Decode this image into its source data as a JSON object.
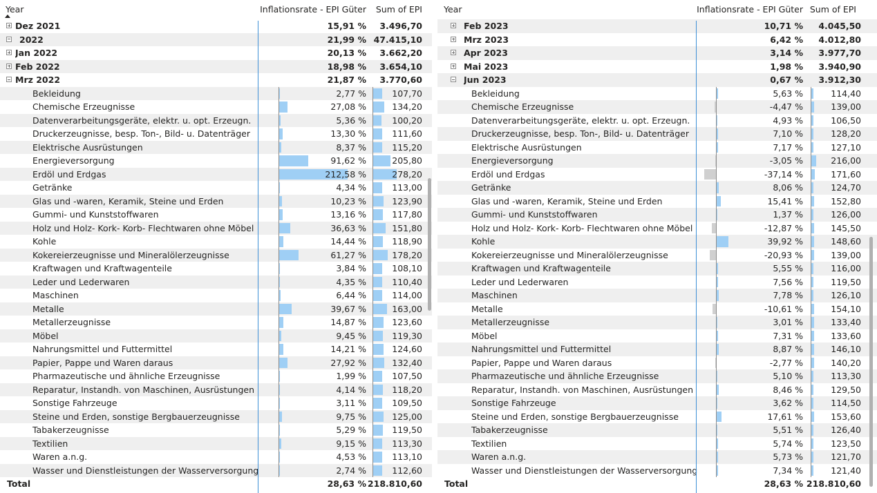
{
  "left": {
    "headers": {
      "year": "Year",
      "rate": "Inflationsrate - EPI Güter",
      "sum": "Sum of EPI"
    },
    "rows": [
      {
        "label": "Dez 2021",
        "rate": "15,91 %",
        "sum": "3.496,70",
        "level": 1,
        "icon": "plus",
        "bold": true
      },
      {
        "label": "2022",
        "rate": "21,99 %",
        "sum": "47.415,10",
        "level": 0,
        "icon": "minus",
        "bold": true
      },
      {
        "label": "Jan 2022",
        "rate": "20,13 %",
        "sum": "3.662,20",
        "level": 1,
        "icon": "plus",
        "bold": true
      },
      {
        "label": "Feb 2022",
        "rate": "18,98 %",
        "sum": "3.654,10",
        "level": 1,
        "icon": "plus",
        "bold": true
      },
      {
        "label": "Mrz 2022",
        "rate": "21,87 %",
        "sum": "3.770,60",
        "level": 1,
        "icon": "minus",
        "bold": true
      },
      {
        "label": "Bekleidung",
        "rate": "2,77 %",
        "sum": "107,70",
        "level": 2,
        "r": 2.77,
        "s": 107.7
      },
      {
        "label": "Chemische Erzeugnisse",
        "rate": "27,08 %",
        "sum": "134,20",
        "level": 2,
        "r": 27.08,
        "s": 134.2
      },
      {
        "label": "Datenverarbeitungsgeräte, elektr. u. opt. Erzeugn.",
        "rate": "5,36 %",
        "sum": "100,20",
        "level": 2,
        "r": 5.36,
        "s": 100.2
      },
      {
        "label": "Druckerzeugnisse, besp. Ton-, Bild- u. Datenträger",
        "rate": "13,30 %",
        "sum": "111,60",
        "level": 2,
        "r": 13.3,
        "s": 111.6
      },
      {
        "label": "Elektrische Ausrüstungen",
        "rate": "8,37 %",
        "sum": "115,20",
        "level": 2,
        "r": 8.37,
        "s": 115.2
      },
      {
        "label": "Energieversorgung",
        "rate": "91,62 %",
        "sum": "205,80",
        "level": 2,
        "r": 91.62,
        "s": 205.8
      },
      {
        "label": "Erdöl und Erdgas",
        "rate": "212,58 %",
        "sum": "278,20",
        "level": 2,
        "r": 212.58,
        "s": 278.2
      },
      {
        "label": "Getränke",
        "rate": "4,34 %",
        "sum": "113,00",
        "level": 2,
        "r": 4.34,
        "s": 113.0
      },
      {
        "label": "Glas und -waren, Keramik, Steine und Erden",
        "rate": "10,23 %",
        "sum": "123,90",
        "level": 2,
        "r": 10.23,
        "s": 123.9
      },
      {
        "label": "Gummi- und Kunststoffwaren",
        "rate": "13,16 %",
        "sum": "117,80",
        "level": 2,
        "r": 13.16,
        "s": 117.8
      },
      {
        "label": "Holz und Holz- Kork- Korb- Flechtwaren ohne Möbel",
        "rate": "36,63 %",
        "sum": "151,80",
        "level": 2,
        "r": 36.63,
        "s": 151.8
      },
      {
        "label": "Kohle",
        "rate": "14,44 %",
        "sum": "118,90",
        "level": 2,
        "r": 14.44,
        "s": 118.9
      },
      {
        "label": "Kokereierzeugnisse und Mineralölerzeugnisse",
        "rate": "61,27 %",
        "sum": "178,20",
        "level": 2,
        "r": 61.27,
        "s": 178.2
      },
      {
        "label": "Kraftwagen und Kraftwagenteile",
        "rate": "3,84 %",
        "sum": "108,10",
        "level": 2,
        "r": 3.84,
        "s": 108.1
      },
      {
        "label": "Leder und Lederwaren",
        "rate": "4,35 %",
        "sum": "110,40",
        "level": 2,
        "r": 4.35,
        "s": 110.4
      },
      {
        "label": "Maschinen",
        "rate": "6,44 %",
        "sum": "114,00",
        "level": 2,
        "r": 6.44,
        "s": 114.0
      },
      {
        "label": "Metalle",
        "rate": "39,67 %",
        "sum": "163,00",
        "level": 2,
        "r": 39.67,
        "s": 163.0
      },
      {
        "label": "Metallerzeugnisse",
        "rate": "14,87 %",
        "sum": "123,60",
        "level": 2,
        "r": 14.87,
        "s": 123.6
      },
      {
        "label": "Möbel",
        "rate": "9,45 %",
        "sum": "119,30",
        "level": 2,
        "r": 9.45,
        "s": 119.3
      },
      {
        "label": "Nahrungsmittel und Futtermittel",
        "rate": "14,21 %",
        "sum": "124,60",
        "level": 2,
        "r": 14.21,
        "s": 124.6
      },
      {
        "label": "Papier, Pappe und Waren daraus",
        "rate": "27,92 %",
        "sum": "132,40",
        "level": 2,
        "r": 27.92,
        "s": 132.4
      },
      {
        "label": "Pharmazeutische und ähnliche Erzeugnisse",
        "rate": "1,99 %",
        "sum": "107,50",
        "level": 2,
        "r": 1.99,
        "s": 107.5
      },
      {
        "label": "Reparatur, Instandh. von Maschinen, Ausrüstungen",
        "rate": "4,14 %",
        "sum": "118,20",
        "level": 2,
        "r": 4.14,
        "s": 118.2
      },
      {
        "label": "Sonstige Fahrzeuge",
        "rate": "3,11 %",
        "sum": "109,50",
        "level": 2,
        "r": 3.11,
        "s": 109.5
      },
      {
        "label": "Steine und Erden, sonstige Bergbauerzeugnisse",
        "rate": "9,75 %",
        "sum": "125,00",
        "level": 2,
        "r": 9.75,
        "s": 125.0
      },
      {
        "label": "Tabakerzeugnisse",
        "rate": "5,29 %",
        "sum": "119,50",
        "level": 2,
        "r": 5.29,
        "s": 119.5
      },
      {
        "label": "Textilien",
        "rate": "9,15 %",
        "sum": "113,30",
        "level": 2,
        "r": 9.15,
        "s": 113.3
      },
      {
        "label": "Waren a.n.g.",
        "rate": "4,53 %",
        "sum": "113,10",
        "level": 2,
        "r": 4.53,
        "s": 113.1
      },
      {
        "label": "Wasser und Dienstleistungen der Wasserversorgung",
        "rate": "2,74 %",
        "sum": "112,60",
        "level": 2,
        "r": 2.74,
        "s": 112.6
      }
    ],
    "total": {
      "label": "Total",
      "rate": "28,63 %",
      "sum": "218.810,60"
    }
  },
  "right": {
    "headers": {
      "year": "Year",
      "rate": "Inflationsrate - EPI Güter",
      "sum": "Sum of EPI"
    },
    "rows": [
      {
        "label": "Feb 2023",
        "rate": "10,71 %",
        "sum": "4.045,50",
        "level": 1,
        "icon": "plus",
        "bold": true
      },
      {
        "label": "Mrz 2023",
        "rate": "6,42 %",
        "sum": "4.012,80",
        "level": 1,
        "icon": "plus",
        "bold": true
      },
      {
        "label": "Apr 2023",
        "rate": "3,14 %",
        "sum": "3.977,70",
        "level": 1,
        "icon": "plus",
        "bold": true
      },
      {
        "label": "Mai 2023",
        "rate": "1,98 %",
        "sum": "3.940,90",
        "level": 1,
        "icon": "plus",
        "bold": true
      },
      {
        "label": "Jun 2023",
        "rate": "0,67 %",
        "sum": "3.912,30",
        "level": 1,
        "icon": "minus",
        "bold": true
      },
      {
        "label": "Bekleidung",
        "rate": "5,63 %",
        "sum": "114,40",
        "level": 2,
        "r": 5.63,
        "s": 114.4
      },
      {
        "label": "Chemische Erzeugnisse",
        "rate": "-4,47 %",
        "sum": "139,00",
        "level": 2,
        "r": -4.47,
        "s": 139.0
      },
      {
        "label": "Datenverarbeitungsgeräte, elektr. u. opt. Erzeugn.",
        "rate": "4,93 %",
        "sum": "106,50",
        "level": 2,
        "r": 4.93,
        "s": 106.5
      },
      {
        "label": "Druckerzeugnisse, besp. Ton-, Bild- u. Datenträger",
        "rate": "7,10 %",
        "sum": "128,20",
        "level": 2,
        "r": 7.1,
        "s": 128.2
      },
      {
        "label": "Elektrische Ausrüstungen",
        "rate": "7,17 %",
        "sum": "127,10",
        "level": 2,
        "r": 7.17,
        "s": 127.1
      },
      {
        "label": "Energieversorgung",
        "rate": "-3,05 %",
        "sum": "216,00",
        "level": 2,
        "r": -3.05,
        "s": 216.0
      },
      {
        "label": "Erdöl und Erdgas",
        "rate": "-37,14 %",
        "sum": "171,60",
        "level": 2,
        "r": -37.14,
        "s": 171.6
      },
      {
        "label": "Getränke",
        "rate": "8,06 %",
        "sum": "124,70",
        "level": 2,
        "r": 8.06,
        "s": 124.7
      },
      {
        "label": "Glas und -waren, Keramik, Steine und Erden",
        "rate": "15,41 %",
        "sum": "152,80",
        "level": 2,
        "r": 15.41,
        "s": 152.8
      },
      {
        "label": "Gummi- und Kunststoffwaren",
        "rate": "1,37 %",
        "sum": "126,00",
        "level": 2,
        "r": 1.37,
        "s": 126.0
      },
      {
        "label": "Holz und Holz- Kork- Korb- Flechtwaren ohne Möbel",
        "rate": "-12,87 %",
        "sum": "145,50",
        "level": 2,
        "r": -12.87,
        "s": 145.5
      },
      {
        "label": "Kohle",
        "rate": "39,92 %",
        "sum": "148,60",
        "level": 2,
        "r": 39.92,
        "s": 148.6
      },
      {
        "label": "Kokereierzeugnisse und Mineralölerzeugnisse",
        "rate": "-20,93 %",
        "sum": "139,00",
        "level": 2,
        "r": -20.93,
        "s": 139.0
      },
      {
        "label": "Kraftwagen und Kraftwagenteile",
        "rate": "5,55 %",
        "sum": "116,00",
        "level": 2,
        "r": 5.55,
        "s": 116.0
      },
      {
        "label": "Leder und Lederwaren",
        "rate": "7,56 %",
        "sum": "119,50",
        "level": 2,
        "r": 7.56,
        "s": 119.5
      },
      {
        "label": "Maschinen",
        "rate": "7,78 %",
        "sum": "126,10",
        "level": 2,
        "r": 7.78,
        "s": 126.1
      },
      {
        "label": "Metalle",
        "rate": "-10,61 %",
        "sum": "154,10",
        "level": 2,
        "r": -10.61,
        "s": 154.1
      },
      {
        "label": "Metallerzeugnisse",
        "rate": "3,01 %",
        "sum": "133,40",
        "level": 2,
        "r": 3.01,
        "s": 133.4
      },
      {
        "label": "Möbel",
        "rate": "7,31 %",
        "sum": "133,60",
        "level": 2,
        "r": 7.31,
        "s": 133.6
      },
      {
        "label": "Nahrungsmittel und Futtermittel",
        "rate": "8,87 %",
        "sum": "146,10",
        "level": 2,
        "r": 8.87,
        "s": 146.1
      },
      {
        "label": "Papier, Pappe und Waren daraus",
        "rate": "-2,77 %",
        "sum": "140,20",
        "level": 2,
        "r": -2.77,
        "s": 140.2
      },
      {
        "label": "Pharmazeutische und ähnliche Erzeugnisse",
        "rate": "5,10 %",
        "sum": "113,30",
        "level": 2,
        "r": 5.1,
        "s": 113.3
      },
      {
        "label": "Reparatur, Instandh. von Maschinen, Ausrüstungen",
        "rate": "8,46 %",
        "sum": "129,50",
        "level": 2,
        "r": 8.46,
        "s": 129.5
      },
      {
        "label": "Sonstige Fahrzeuge",
        "rate": "3,62 %",
        "sum": "114,50",
        "level": 2,
        "r": 3.62,
        "s": 114.5
      },
      {
        "label": "Steine und Erden, sonstige Bergbauerzeugnisse",
        "rate": "17,61 %",
        "sum": "153,60",
        "level": 2,
        "r": 17.61,
        "s": 153.6
      },
      {
        "label": "Tabakerzeugnisse",
        "rate": "5,51 %",
        "sum": "126,40",
        "level": 2,
        "r": 5.51,
        "s": 126.4
      },
      {
        "label": "Textilien",
        "rate": "5,74 %",
        "sum": "123,50",
        "level": 2,
        "r": 5.74,
        "s": 123.5
      },
      {
        "label": "Waren a.n.g.",
        "rate": "5,73 %",
        "sum": "121,70",
        "level": 2,
        "r": 5.73,
        "s": 121.7
      },
      {
        "label": "Wasser und Dienstleistungen der Wasserversorgung",
        "rate": "7,34 %",
        "sum": "121,40",
        "level": 2,
        "r": 7.34,
        "s": 121.4
      }
    ],
    "total": {
      "label": "Total",
      "rate": "28,63 %",
      "sum": "218.810,60"
    }
  }
}
